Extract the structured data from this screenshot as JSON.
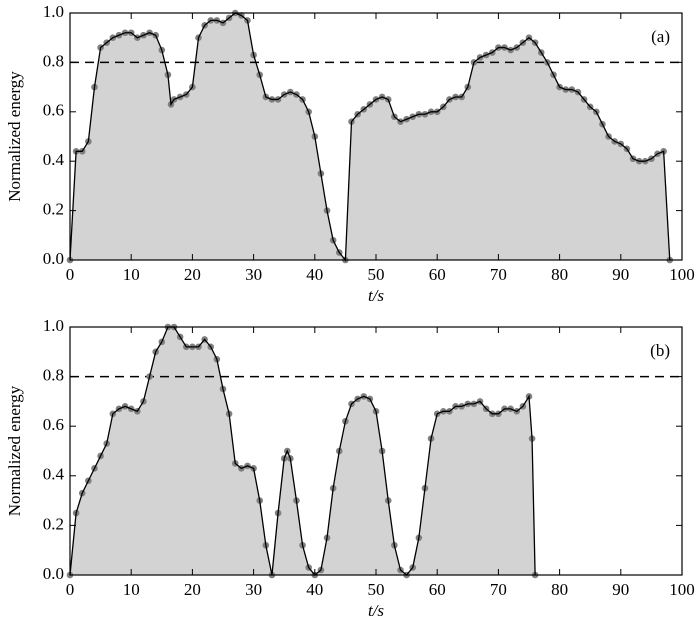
{
  "chart_data": [
    {
      "type": "area",
      "panel_label": "(a)",
      "xlabel": "t/s",
      "ylabel": "Normalized energy",
      "x": [
        0,
        1,
        2,
        3,
        4,
        5,
        6,
        7,
        8,
        9,
        10,
        11,
        12,
        13,
        14,
        15,
        16,
        16.5,
        17,
        18,
        19,
        20,
        21,
        22,
        23,
        24,
        25,
        26,
        27,
        28,
        29,
        30,
        31,
        32,
        33,
        34,
        35,
        36,
        37,
        38,
        39,
        40,
        41,
        42,
        43,
        44,
        45,
        46,
        47,
        48,
        49,
        50,
        51,
        52,
        53,
        54,
        55,
        56,
        57,
        58,
        59,
        60,
        61,
        62,
        63,
        64,
        65,
        66,
        67,
        68,
        69,
        70,
        71,
        72,
        73,
        74,
        75,
        76,
        77,
        78,
        79,
        80,
        81,
        82,
        83,
        84,
        85,
        86,
        87,
        88,
        89,
        90,
        91,
        92,
        93,
        94,
        95,
        96,
        97,
        98
      ],
      "values": [
        0,
        0.44,
        0.44,
        0.48,
        0.7,
        0.86,
        0.88,
        0.9,
        0.91,
        0.92,
        0.92,
        0.9,
        0.91,
        0.92,
        0.91,
        0.85,
        0.75,
        0.63,
        0.65,
        0.66,
        0.67,
        0.7,
        0.9,
        0.95,
        0.97,
        0.97,
        0.96,
        0.98,
        1.0,
        0.99,
        0.97,
        0.83,
        0.75,
        0.66,
        0.65,
        0.65,
        0.67,
        0.68,
        0.67,
        0.65,
        0.6,
        0.5,
        0.35,
        0.2,
        0.08,
        0.03,
        0,
        0.56,
        0.59,
        0.61,
        0.63,
        0.65,
        0.66,
        0.65,
        0.58,
        0.56,
        0.57,
        0.58,
        0.59,
        0.59,
        0.6,
        0.6,
        0.62,
        0.65,
        0.66,
        0.66,
        0.7,
        0.8,
        0.82,
        0.83,
        0.84,
        0.86,
        0.86,
        0.85,
        0.86,
        0.88,
        0.9,
        0.88,
        0.84,
        0.8,
        0.75,
        0.7,
        0.69,
        0.69,
        0.68,
        0.65,
        0.62,
        0.6,
        0.55,
        0.5,
        0.48,
        0.47,
        0.45,
        0.41,
        0.4,
        0.4,
        0.41,
        0.43,
        0.44,
        0
      ],
      "threshold": 0.8,
      "fill_color": "#d3d3d3",
      "line_color": "#000000",
      "marker_color": "#808080",
      "xlim": [
        0,
        100
      ],
      "xticks": [
        0,
        10,
        20,
        30,
        40,
        50,
        60,
        70,
        80,
        90,
        100
      ],
      "ylim": [
        0,
        1
      ],
      "yticks": [
        {
          "value": 0,
          "label": "0.0"
        },
        {
          "value": 0.2,
          "label": "0.2"
        },
        {
          "value": 0.4,
          "label": "0.4"
        },
        {
          "value": 0.6,
          "label": "0.6"
        },
        {
          "value": 0.8,
          "label": "0.8"
        },
        {
          "value": 1,
          "label": "1.0"
        }
      ]
    },
    {
      "type": "area",
      "panel_label": "(b)",
      "xlabel": "t/s",
      "ylabel": "Normalized energy",
      "x": [
        0,
        1,
        2,
        3,
        4,
        5,
        6,
        7,
        8,
        9,
        10,
        11,
        12,
        13,
        14,
        15,
        16,
        17,
        18,
        19,
        20,
        21,
        22,
        23,
        24,
        25,
        26,
        27,
        28,
        29,
        30,
        31,
        32,
        33,
        34,
        35,
        35.5,
        36,
        37,
        38,
        39,
        40,
        41,
        42,
        43,
        44,
        45,
        46,
        47,
        48,
        49,
        50,
        51,
        52,
        53,
        54,
        55,
        56,
        57,
        58,
        59,
        60,
        61,
        62,
        63,
        64,
        65,
        66,
        67,
        68,
        69,
        70,
        71,
        72,
        73,
        74,
        75,
        75.5,
        76
      ],
      "values": [
        0,
        0.25,
        0.33,
        0.38,
        0.43,
        0.48,
        0.53,
        0.65,
        0.67,
        0.68,
        0.67,
        0.66,
        0.7,
        0.8,
        0.9,
        0.94,
        1.0,
        1.0,
        0.96,
        0.92,
        0.92,
        0.92,
        0.95,
        0.92,
        0.87,
        0.75,
        0.65,
        0.45,
        0.43,
        0.44,
        0.43,
        0.3,
        0.12,
        0,
        0.25,
        0.47,
        0.5,
        0.47,
        0.3,
        0.12,
        0.03,
        0,
        0.02,
        0.15,
        0.35,
        0.5,
        0.62,
        0.69,
        0.71,
        0.72,
        0.71,
        0.66,
        0.5,
        0.3,
        0.12,
        0.02,
        0,
        0.03,
        0.15,
        0.35,
        0.55,
        0.65,
        0.66,
        0.66,
        0.68,
        0.68,
        0.69,
        0.69,
        0.7,
        0.67,
        0.65,
        0.65,
        0.67,
        0.67,
        0.66,
        0.68,
        0.72,
        0.55,
        0
      ],
      "threshold": 0.8,
      "fill_color": "#d3d3d3",
      "line_color": "#000000",
      "marker_color": "#808080",
      "xlim": [
        0,
        100
      ],
      "xticks": [
        0,
        10,
        20,
        30,
        40,
        50,
        60,
        70,
        80,
        90,
        100
      ],
      "ylim": [
        0,
        1
      ],
      "yticks": [
        {
          "value": 0,
          "label": "0.0"
        },
        {
          "value": 0.2,
          "label": "0.2"
        },
        {
          "value": 0.4,
          "label": "0.4"
        },
        {
          "value": 0.6,
          "label": "0.6"
        },
        {
          "value": 0.8,
          "label": "0.8"
        },
        {
          "value": 1,
          "label": "1.0"
        }
      ]
    }
  ]
}
